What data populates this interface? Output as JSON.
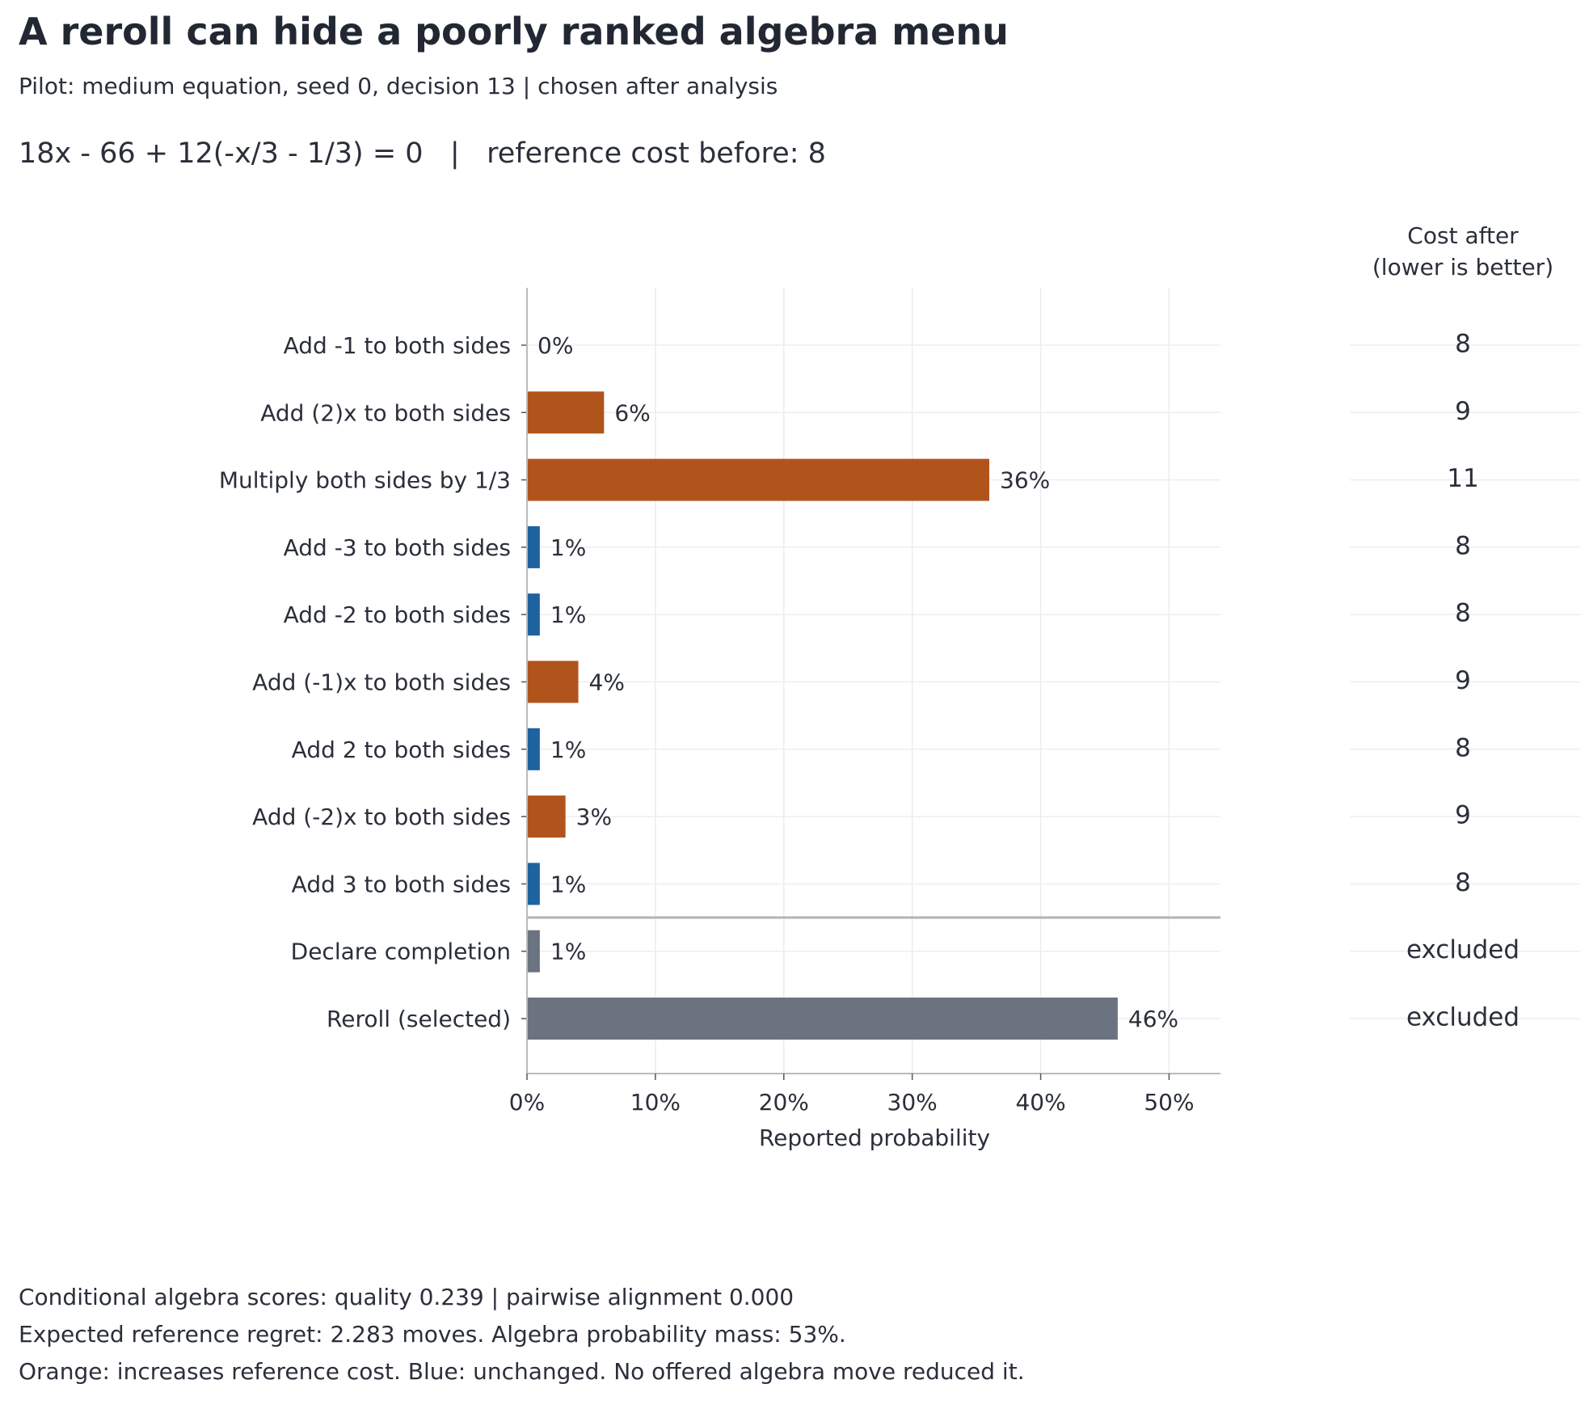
{
  "title": "A reroll can hide a poorly ranked algebra menu",
  "subtitle": "Pilot: medium equation, seed 0, decision 13 | chosen after analysis",
  "equation_line": "18x - 66 + 12(-x/3 - 1/3) = 0   |   reference cost before: 8",
  "cost_header": {
    "line1": "Cost after",
    "line2": "(lower is better)"
  },
  "footer": {
    "line1": "Conditional algebra scores: quality 0.239 | pairwise alignment 0.000",
    "line2": "Expected reference regret: 2.283 moves. Algebra probability mass: 53%.",
    "line3": "Orange: increases reference cost. Blue: unchanged. No offered algebra move reduced it."
  },
  "colors": {
    "increase": "#b1541c",
    "unchanged": "#1e63a0",
    "excluded": "#6b7280"
  },
  "chart_data": {
    "type": "bar",
    "orientation": "horizontal",
    "xlabel": "Reported probability",
    "xlim": [
      0,
      54
    ],
    "xticks": [
      0,
      10,
      20,
      30,
      40,
      50
    ],
    "xtick_labels": [
      "0%",
      "10%",
      "20%",
      "30%",
      "40%",
      "50%"
    ],
    "grid": true,
    "categories": [
      "Add -1 to both sides",
      "Add (2)x to both sides",
      "Multiply both sides by 1/3",
      "Add -3 to both sides",
      "Add -2 to both sides",
      "Add (-1)x to both sides",
      "Add 2 to both sides",
      "Add (-2)x to both sides",
      "Add 3 to both sides",
      "Declare completion",
      "Reroll (selected)"
    ],
    "values": [
      0,
      6,
      36,
      1,
      1,
      4,
      1,
      3,
      1,
      1,
      46
    ],
    "value_labels": [
      "0%",
      "6%",
      "36%",
      "1%",
      "1%",
      "4%",
      "1%",
      "3%",
      "1%",
      "1%",
      "46%"
    ],
    "category_kind": [
      "unchanged",
      "increase",
      "increase",
      "unchanged",
      "unchanged",
      "increase",
      "unchanged",
      "increase",
      "unchanged",
      "excluded",
      "excluded"
    ],
    "cost_after": [
      "8",
      "9",
      "11",
      "8",
      "8",
      "9",
      "8",
      "9",
      "8",
      "excluded",
      "excluded"
    ]
  }
}
